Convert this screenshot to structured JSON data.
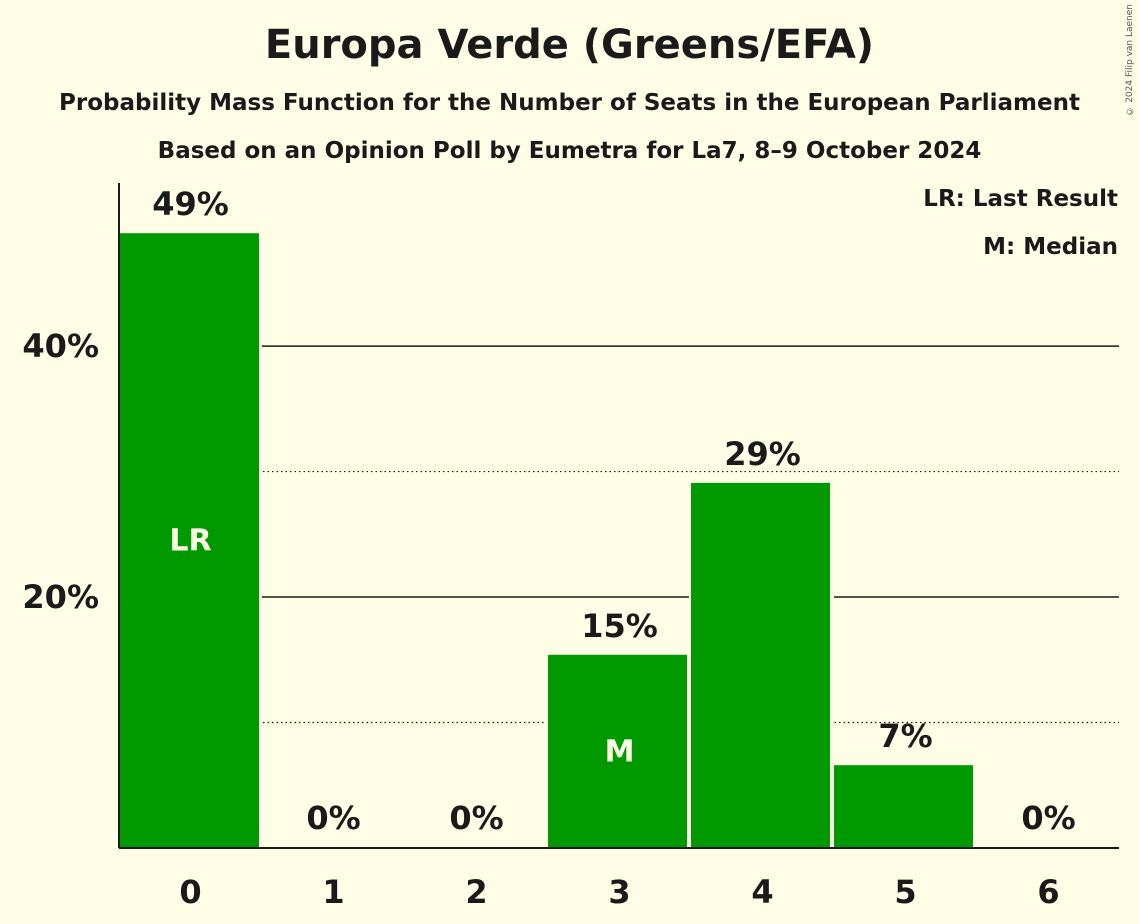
{
  "header": {
    "title": "Europa Verde (Greens/EFA)",
    "subtitle": "Probability Mass Function for the Number of Seats in the European Parliament",
    "source": "Based on an Opinion Poll by Eumetra for La7, 8–9 October 2024"
  },
  "legend": {
    "last_result": "LR: Last Result",
    "median": "M: Median"
  },
  "copyright": "© 2024 Filip van Laenen",
  "colors": {
    "bar": "#009900",
    "background": "#fffde6",
    "text": "#1a1a1a"
  },
  "chart_data": {
    "type": "bar",
    "title": "Europa Verde (Greens/EFA)",
    "xlabel": "",
    "ylabel": "",
    "categories": [
      "0",
      "1",
      "2",
      "3",
      "4",
      "5",
      "6"
    ],
    "values": [
      49,
      0,
      0,
      15.4,
      29.1,
      6.6,
      0
    ],
    "value_labels": [
      "49%",
      "0%",
      "0%",
      "15%",
      "29%",
      "7%",
      "0%"
    ],
    "bar_markers": [
      "LR",
      "",
      "",
      "M",
      "",
      "",
      ""
    ],
    "ylim": [
      0,
      53
    ],
    "yticks": [
      20,
      40
    ],
    "ytick_labels": [
      "20%",
      "40%"
    ],
    "gridlines_solid": [
      20,
      40
    ],
    "gridlines_dotted": [
      10,
      30
    ]
  }
}
